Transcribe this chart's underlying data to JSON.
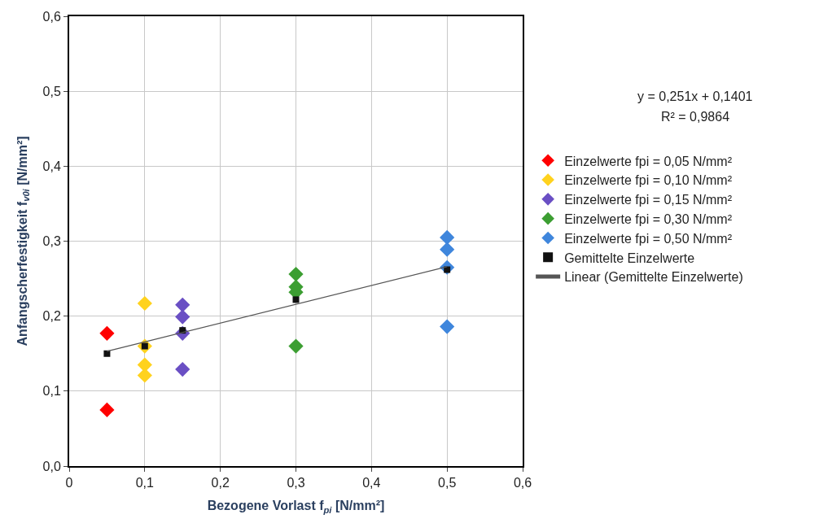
{
  "chart_data": {
    "type": "scatter",
    "xlabel": "Bezogene Vorlast f$_{pi}$ [N/mm²]",
    "ylabel": "Anfangscherfestigkeit f$_{v0i}$ [N/mm²]",
    "annotations": [
      "y = 0,251x + 0,1401",
      "R² = 0,9864"
    ],
    "xlim": [
      0,
      0.6
    ],
    "ylim": [
      0,
      0.6
    ],
    "xticks": [
      0,
      {
        "value": 0.1,
        "label": "0,1"
      },
      {
        "value": 0.2,
        "label": "0,2"
      },
      {
        "value": 0.3,
        "label": "0,3"
      },
      {
        "value": 0.4,
        "label": "0,4"
      },
      {
        "value": 0.5,
        "label": "0,5"
      },
      {
        "value": 0.6,
        "label": "0,6"
      }
    ],
    "yticks": [
      {
        "value": 0,
        "label": "0,0"
      },
      {
        "value": 0.1,
        "label": "0,1"
      },
      {
        "value": 0.2,
        "label": "0,2"
      },
      {
        "value": 0.3,
        "label": "0,3"
      },
      {
        "value": 0.4,
        "label": "0,4"
      },
      {
        "value": 0.5,
        "label": "0,5"
      },
      {
        "value": 0.6,
        "label": "0,6"
      }
    ],
    "grid": true,
    "legend": "right",
    "series": [
      {
        "name": "Einzelwerte fpi = 0,05 N/mm²",
        "color": "#ff0000",
        "marker": "diamond",
        "x": [
          0.05,
          0.05
        ],
        "values": [
          0.177,
          0.075
        ]
      },
      {
        "name": "Einzelwerte fpi = 0,10 N/mm²",
        "color": "#ffd21e",
        "marker": "diamond",
        "x": [
          0.1,
          0.1,
          0.1,
          0.1
        ],
        "values": [
          0.217,
          0.16,
          0.135,
          0.121
        ]
      },
      {
        "name": "Einzelwerte fpi = 0,15 N/mm²",
        "color": "#6a4fc4",
        "marker": "diamond",
        "x": [
          0.15,
          0.15,
          0.15,
          0.15
        ],
        "values": [
          0.215,
          0.199,
          0.177,
          0.129
        ]
      },
      {
        "name": "Einzelwerte fpi = 0,30 N/mm²",
        "color": "#3c9e32",
        "marker": "diamond",
        "x": [
          0.3,
          0.3,
          0.3,
          0.3
        ],
        "values": [
          0.256,
          0.239,
          0.232,
          0.16
        ]
      },
      {
        "name": "Einzelwerte fpi = 0,50 N/mm²",
        "color": "#3f86dc",
        "marker": "diamond",
        "x": [
          0.5,
          0.5,
          0.5,
          0.5
        ],
        "values": [
          0.305,
          0.289,
          0.265,
          0.186
        ]
      },
      {
        "name": "Gemittelte Einzelwerte",
        "color": "#111111",
        "marker": "square",
        "x": [
          0.05,
          0.1,
          0.15,
          0.3,
          0.5
        ],
        "values": [
          0.15,
          0.16,
          0.181,
          0.222,
          0.262
        ]
      },
      {
        "name": "Linear (Gemittelte Einzelwerte)",
        "type": "line",
        "color": "#555555",
        "marker": "none",
        "line_style": "solid",
        "x": [
          0.05,
          0.5
        ],
        "values": [
          0.153,
          0.266
        ]
      }
    ]
  }
}
